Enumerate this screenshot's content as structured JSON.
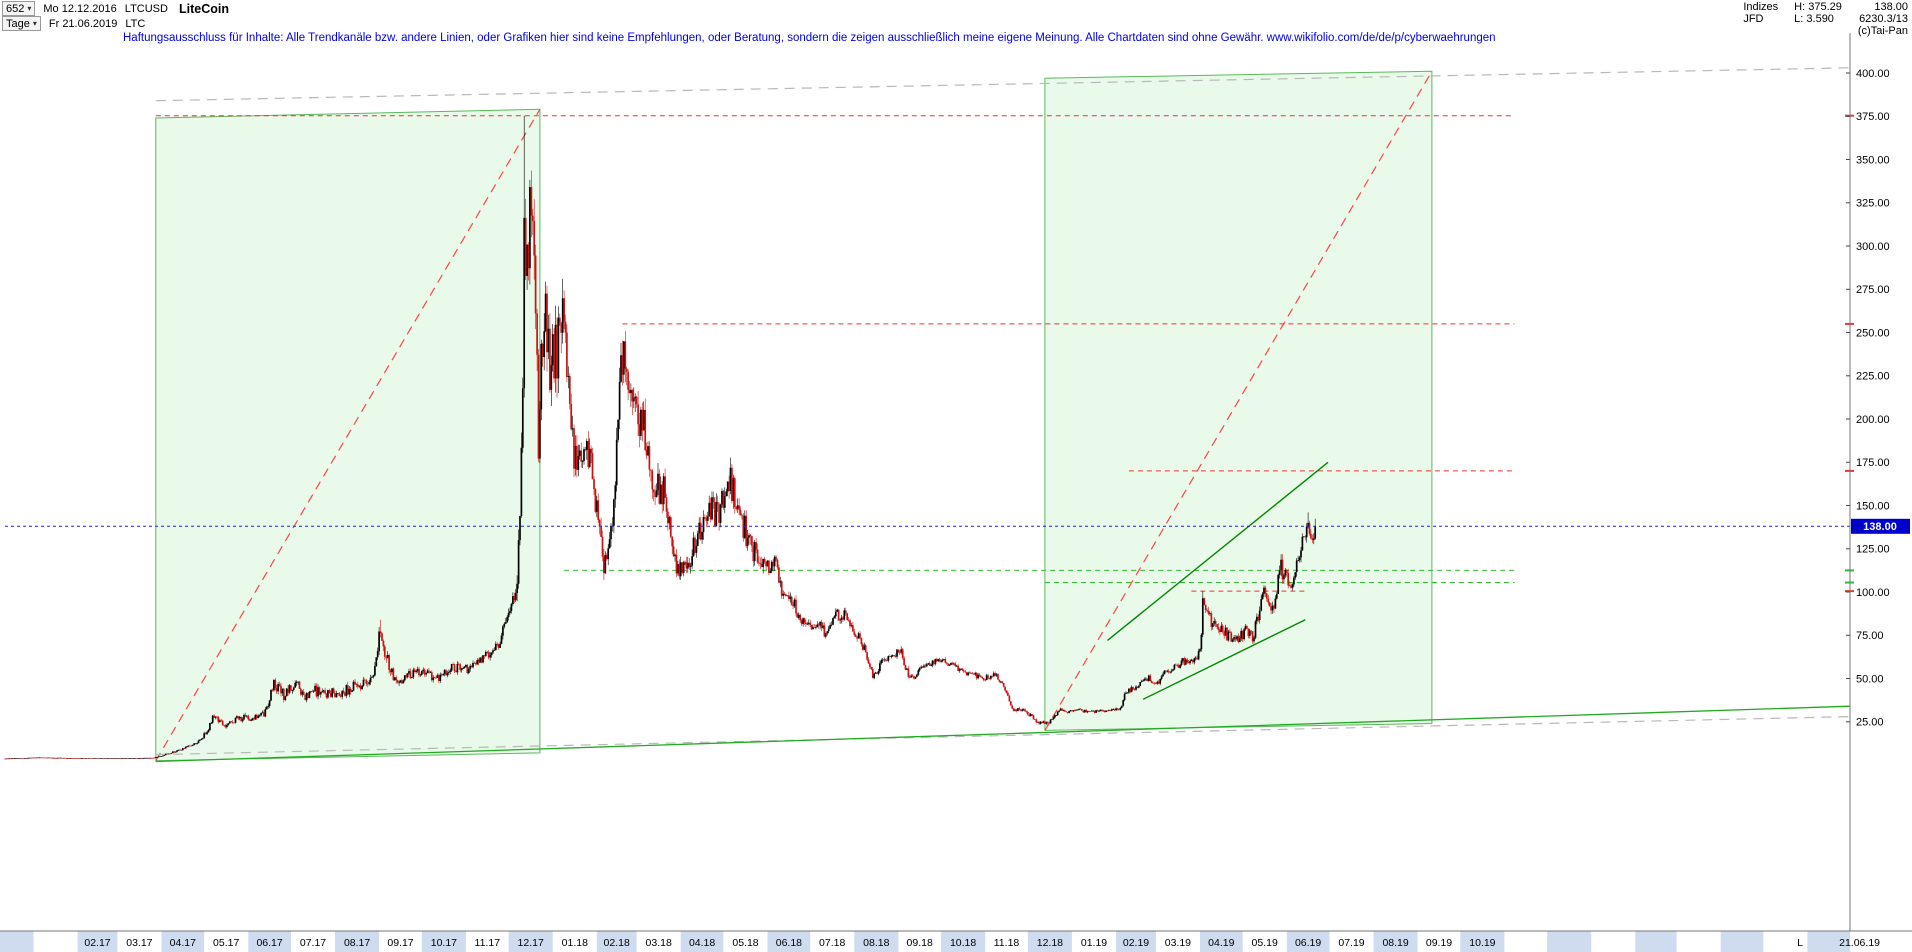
{
  "header": {
    "bars_count": "652",
    "first_date": "Mo 12.12.2016",
    "symbol": "LTCUSD",
    "name": "LiteCoin",
    "period": "Tage",
    "last_date": "Fr 21.06.2019",
    "ticker": "LTC",
    "info": {
      "market": "Indizes",
      "provider": "JFD",
      "high": "H: 375.29",
      "low": "L: 3.590",
      "price": "138.00",
      "index_value": "6230.3/13",
      "copyright": "(c)Tai-Pan"
    },
    "disclaimer": "Haftungsausschluss für Inhalte: Alle Trendkanäle bzw. andere Linien, oder Grafiken hier sind keine Empfehlungen, oder Beratung, sondern die zeigen ausschließlich meine eigene Meinung. Alle Chartdaten sind ohne Gewähr.  www.wikifolio.com/de/de/p/cyberwaehrungen"
  },
  "chart_data": {
    "type": "candlestick",
    "instrument": "LTCUSD",
    "title": "LiteCoin",
    "timeframe": "Tage",
    "range_high": 375.29,
    "range_low": 3.59,
    "last_close": 138.0,
    "x_axis": {
      "start": "2016-12-12",
      "end_of_data": "2019-06-21",
      "plot_end": "2020-07-01",
      "last_bar_marker": "L",
      "last_bar_label": "21.06.19",
      "tick_labels": [
        {
          "label": "02.17",
          "date": "2017-02-01"
        },
        {
          "label": "03.17",
          "date": "2017-03-01"
        },
        {
          "label": "04.17",
          "date": "2017-04-01"
        },
        {
          "label": "05.17",
          "date": "2017-05-01"
        },
        {
          "label": "06.17",
          "date": "2017-06-01"
        },
        {
          "label": "07.17",
          "date": "2017-07-01"
        },
        {
          "label": "08.17",
          "date": "2017-08-01"
        },
        {
          "label": "09.17",
          "date": "2017-09-01"
        },
        {
          "label": "10.17",
          "date": "2017-10-01"
        },
        {
          "label": "11.17",
          "date": "2017-11-01"
        },
        {
          "label": "12.17",
          "date": "2017-12-01"
        },
        {
          "label": "01.18",
          "date": "2018-01-01"
        },
        {
          "label": "02.18",
          "date": "2018-02-01"
        },
        {
          "label": "03.18",
          "date": "2018-03-01"
        },
        {
          "label": "04.18",
          "date": "2018-04-01"
        },
        {
          "label": "05.18",
          "date": "2018-05-01"
        },
        {
          "label": "06.18",
          "date": "2018-06-01"
        },
        {
          "label": "07.18",
          "date": "2018-07-01"
        },
        {
          "label": "08.18",
          "date": "2018-08-01"
        },
        {
          "label": "09.18",
          "date": "2018-09-01"
        },
        {
          "label": "10.18",
          "date": "2018-10-01"
        },
        {
          "label": "11.18",
          "date": "2018-11-01"
        },
        {
          "label": "12.18",
          "date": "2018-12-01"
        },
        {
          "label": "01.19",
          "date": "2019-01-01"
        },
        {
          "label": "02.19",
          "date": "2019-02-01"
        },
        {
          "label": "03.19",
          "date": "2019-03-01"
        },
        {
          "label": "04.19",
          "date": "2019-04-01"
        },
        {
          "label": "05.19",
          "date": "2019-05-01"
        },
        {
          "label": "06.19",
          "date": "2019-06-01"
        },
        {
          "label": "07.19",
          "date": "2019-07-01"
        },
        {
          "label": "08.19",
          "date": "2019-08-01"
        },
        {
          "label": "09.19",
          "date": "2019-09-01"
        },
        {
          "label": "10.19",
          "date": "2019-10-01"
        }
      ]
    },
    "y_axis": {
      "unit": "USD",
      "ticks": [
        25,
        50,
        75,
        100,
        125,
        150,
        175,
        200,
        225,
        250,
        275,
        300,
        325,
        350,
        375,
        400
      ]
    },
    "price_tag": {
      "label": "138.00",
      "price": 138,
      "bg": "#0000cc",
      "fg": "#ffffff"
    },
    "colors": {
      "candle_up": "#000000",
      "candle_down": "#cc1111",
      "month_band": "#cfdcef",
      "axis": "#777777",
      "resistance": "#ee3333",
      "support_green": "#33bb33",
      "trend_green": "#008800",
      "channel_box_fill": "rgba(140,225,140,0.18)",
      "channel_box_edge": "#5cb85c",
      "gray_channel": "#b8b8b8",
      "current_price_line": "#2222dd"
    },
    "series_keyframes": [
      [
        "2016-12-12",
        3.7
      ],
      [
        "2017-01-05",
        4.3
      ],
      [
        "2017-02-01",
        3.9
      ],
      [
        "2017-03-01",
        3.9
      ],
      [
        "2017-03-26",
        4.1
      ],
      [
        "2017-04-08",
        7.2
      ],
      [
        "2017-04-20",
        10.5
      ],
      [
        "2017-04-28",
        14.0
      ],
      [
        "2017-05-08",
        29.0
      ],
      [
        "2017-05-16",
        22.0
      ],
      [
        "2017-05-24",
        27.0
      ],
      [
        "2017-06-02",
        27.0
      ],
      [
        "2017-06-12",
        29.0
      ],
      [
        "2017-06-19",
        48.0
      ],
      [
        "2017-06-26",
        40.0
      ],
      [
        "2017-07-05",
        47.0
      ],
      [
        "2017-07-11",
        38.0
      ],
      [
        "2017-07-17",
        43.0
      ],
      [
        "2017-07-25",
        41.0
      ],
      [
        "2017-08-05",
        42.0
      ],
      [
        "2017-08-14",
        45.0
      ],
      [
        "2017-08-22",
        47.0
      ],
      [
        "2017-08-29",
        55.0
      ],
      [
        "2017-09-01",
        78.0
      ],
      [
        "2017-09-04",
        65.0
      ],
      [
        "2017-09-08",
        58.0
      ],
      [
        "2017-09-14",
        45.0
      ],
      [
        "2017-09-20",
        52.0
      ],
      [
        "2017-09-30",
        54.0
      ],
      [
        "2017-10-12",
        50.0
      ],
      [
        "2017-10-22",
        56.0
      ],
      [
        "2017-11-02",
        55.0
      ],
      [
        "2017-11-12",
        61.0
      ],
      [
        "2017-11-24",
        70.0
      ],
      [
        "2017-12-01",
        88.0
      ],
      [
        "2017-12-06",
        98.0
      ],
      [
        "2017-12-09",
        140.0
      ],
      [
        "2017-12-11",
        230.0
      ],
      [
        "2017-12-12",
        320.0
      ],
      [
        "2017-12-13",
        290.0
      ],
      [
        "2017-12-15",
        300.0
      ],
      [
        "2017-12-18",
        330.0
      ],
      [
        "2017-12-20",
        280.0
      ],
      [
        "2017-12-22",
        190.0
      ],
      [
        "2017-12-26",
        270.0
      ],
      [
        "2017-12-30",
        225.0
      ],
      [
        "2018-01-04",
        240.0
      ],
      [
        "2018-01-08",
        255.0
      ],
      [
        "2018-01-12",
        230.0
      ],
      [
        "2018-01-16",
        175.0
      ],
      [
        "2018-01-22",
        180.0
      ],
      [
        "2018-01-28",
        177.0
      ],
      [
        "2018-02-02",
        140.0
      ],
      [
        "2018-02-06",
        115.0
      ],
      [
        "2018-02-12",
        145.0
      ],
      [
        "2018-02-17",
        220.0
      ],
      [
        "2018-02-20",
        242.0
      ],
      [
        "2018-02-26",
        210.0
      ],
      [
        "2018-03-06",
        195.0
      ],
      [
        "2018-03-14",
        160.0
      ],
      [
        "2018-03-20",
        158.0
      ],
      [
        "2018-03-26",
        128.0
      ],
      [
        "2018-03-30",
        112.0
      ],
      [
        "2018-04-06",
        118.0
      ],
      [
        "2018-04-13",
        130.0
      ],
      [
        "2018-04-20",
        148.0
      ],
      [
        "2018-04-25",
        145.0
      ],
      [
        "2018-05-02",
        152.0
      ],
      [
        "2018-05-06",
        165.0
      ],
      [
        "2018-05-11",
        148.0
      ],
      [
        "2018-05-18",
        132.0
      ],
      [
        "2018-05-24",
        120.0
      ],
      [
        "2018-05-30",
        112.0
      ],
      [
        "2018-06-06",
        118.0
      ],
      [
        "2018-06-11",
        100.0
      ],
      [
        "2018-06-18",
        96.0
      ],
      [
        "2018-06-24",
        85.0
      ],
      [
        "2018-06-30",
        80.0
      ],
      [
        "2018-07-06",
        82.0
      ],
      [
        "2018-07-12",
        76.0
      ],
      [
        "2018-07-18",
        86.0
      ],
      [
        "2018-07-24",
        87.0
      ],
      [
        "2018-07-31",
        78.0
      ],
      [
        "2018-08-06",
        72.0
      ],
      [
        "2018-08-11",
        60.0
      ],
      [
        "2018-08-14",
        52.0
      ],
      [
        "2018-08-20",
        58.0
      ],
      [
        "2018-08-28",
        64.0
      ],
      [
        "2018-09-03",
        66.0
      ],
      [
        "2018-09-06",
        54.0
      ],
      [
        "2018-09-12",
        51.0
      ],
      [
        "2018-09-18",
        56.0
      ],
      [
        "2018-09-24",
        58.0
      ],
      [
        "2018-09-30",
        61.0
      ],
      [
        "2018-10-08",
        58.0
      ],
      [
        "2018-10-15",
        54.0
      ],
      [
        "2018-10-24",
        52.0
      ],
      [
        "2018-11-01",
        50.0
      ],
      [
        "2018-11-08",
        53.0
      ],
      [
        "2018-11-14",
        45.0
      ],
      [
        "2018-11-20",
        33.0
      ],
      [
        "2018-11-26",
        32.0
      ],
      [
        "2018-12-03",
        29.0
      ],
      [
        "2018-12-07",
        25.0
      ],
      [
        "2018-12-15",
        23.5
      ],
      [
        "2018-12-20",
        29.0
      ],
      [
        "2018-12-24",
        33.0
      ],
      [
        "2018-12-28",
        30.0
      ],
      [
        "2019-01-04",
        32.0
      ],
      [
        "2019-01-10",
        31.0
      ],
      [
        "2019-01-16",
        30.5
      ],
      [
        "2019-01-22",
        31.5
      ],
      [
        "2019-01-28",
        31.0
      ],
      [
        "2019-02-04",
        33.0
      ],
      [
        "2019-02-08",
        43.0
      ],
      [
        "2019-02-14",
        44.0
      ],
      [
        "2019-02-19",
        47.0
      ],
      [
        "2019-02-24",
        50.0
      ],
      [
        "2019-03-02",
        47.0
      ],
      [
        "2019-03-08",
        55.0
      ],
      [
        "2019-03-14",
        56.0
      ],
      [
        "2019-03-20",
        60.0
      ],
      [
        "2019-03-27",
        59.0
      ],
      [
        "2019-04-01",
        66.0
      ],
      [
        "2019-04-03",
        94.0
      ],
      [
        "2019-04-06",
        89.0
      ],
      [
        "2019-04-10",
        81.0
      ],
      [
        "2019-04-16",
        78.0
      ],
      [
        "2019-04-22",
        74.0
      ],
      [
        "2019-04-27",
        72.0
      ],
      [
        "2019-05-03",
        78.0
      ],
      [
        "2019-05-08",
        74.0
      ],
      [
        "2019-05-13",
        89.0
      ],
      [
        "2019-05-16",
        103.0
      ],
      [
        "2019-05-19",
        91.0
      ],
      [
        "2019-05-23",
        94.0
      ],
      [
        "2019-05-28",
        114.0
      ],
      [
        "2019-05-31",
        109.0
      ],
      [
        "2019-06-04",
        102.0
      ],
      [
        "2019-06-09",
        117.0
      ],
      [
        "2019-06-12",
        133.0
      ],
      [
        "2019-06-16",
        136.0
      ],
      [
        "2019-06-19",
        134.0
      ],
      [
        "2019-06-21",
        138.0
      ]
    ],
    "volatility_eras": [
      [
        "2016-12-12",
        0.013
      ],
      [
        "2017-04-01",
        0.05
      ],
      [
        "2017-09-16",
        0.035
      ],
      [
        "2017-12-07",
        0.055
      ],
      [
        "2018-01-10",
        0.042
      ],
      [
        "2018-06-01",
        0.03
      ],
      [
        "2018-09-10",
        0.022
      ],
      [
        "2018-11-16",
        0.032
      ],
      [
        "2018-12-22",
        0.02
      ],
      [
        "2019-02-06",
        0.025
      ],
      [
        "2019-04-02",
        0.032
      ],
      [
        "2019-06-01",
        0.028
      ]
    ],
    "pins": {
      "2016-12-17": {
        "low": 3.59
      },
      "2017-09-02": {
        "high": 84.0
      },
      "2017-12-12": {
        "high": 375.29
      },
      "2018-12-15": {
        "low": 22.6
      },
      "2019-04-03": {
        "high": 100.5
      },
      "2019-06-16": {
        "high": 146.0
      },
      "2019-06-21": {
        "close": 138.0,
        "high": 141.5
      }
    },
    "overlays": [
      {
        "id": "channel-box-2017",
        "type": "polygon",
        "color": "#5cb85c",
        "fill": "rgba(140,225,140,0.18)",
        "width": 1,
        "points": [
          [
            "2017-03-28",
            374
          ],
          [
            "2017-12-23",
            379
          ],
          [
            "2017-12-23",
            7
          ],
          [
            "2017-03-28",
            2.5
          ]
        ]
      },
      {
        "id": "channel-box-2019",
        "type": "polygon",
        "color": "#5cb85c",
        "fill": "rgba(140,225,140,0.18)",
        "width": 1,
        "points": [
          [
            "2018-12-13",
            397
          ],
          [
            "2019-09-11",
            401
          ],
          [
            "2019-09-11",
            24
          ],
          [
            "2018-12-13",
            20
          ]
        ]
      },
      {
        "id": "red-channel-diagonal-2017",
        "type": "line",
        "color": "#ff4444",
        "dash": "9 6",
        "width": 1.2,
        "points": [
          [
            "2017-03-28",
            2.5
          ],
          [
            "2017-12-23",
            379
          ]
        ]
      },
      {
        "id": "red-channel-diagonal-2019",
        "type": "line",
        "color": "#ff4444",
        "dash": "9 6",
        "width": 1.2,
        "points": [
          [
            "2018-12-13",
            20
          ],
          [
            "2019-09-11",
            401
          ]
        ]
      },
      {
        "id": "resistance-375",
        "type": "line",
        "color": "#ee3333",
        "dash": "5 4",
        "width": 1,
        "axis_tick": true,
        "points": [
          [
            "2017-03-28",
            375.3
          ],
          [
            "2019-11-08",
            375.3
          ]
        ]
      },
      {
        "id": "resistance-255",
        "type": "line",
        "color": "#ee3333",
        "dash": "5 4",
        "width": 1,
        "axis_tick": true,
        "points": [
          [
            "2018-02-19",
            255
          ],
          [
            "2019-11-08",
            255
          ]
        ]
      },
      {
        "id": "resistance-170",
        "type": "line",
        "color": "#ee3333",
        "dash": "5 4",
        "width": 1,
        "axis_tick": true,
        "points": [
          [
            "2019-02-10",
            170
          ],
          [
            "2019-11-08",
            170
          ]
        ]
      },
      {
        "id": "resistance-100",
        "type": "line",
        "color": "#ee3333",
        "dash": "5 4",
        "width": 1,
        "axis_tick": true,
        "points": [
          [
            "2019-03-26",
            100.5
          ],
          [
            "2019-06-15",
            100.5
          ]
        ]
      },
      {
        "id": "support-green-113",
        "type": "line",
        "color": "#33bb33",
        "dash": "5 4",
        "width": 1,
        "axis_tick": true,
        "points": [
          [
            "2018-01-09",
            112.5
          ],
          [
            "2019-11-08",
            112.5
          ]
        ]
      },
      {
        "id": "support-green-106",
        "type": "line",
        "color": "#33bb33",
        "dash": "5 4",
        "width": 1,
        "axis_tick": true,
        "points": [
          [
            "2018-12-13",
            105.5
          ],
          [
            "2019-11-08",
            105.5
          ]
        ]
      },
      {
        "id": "gray-channel-top",
        "type": "line",
        "color": "#b8b8b8",
        "dash": "10 7",
        "width": 1.2,
        "points": [
          [
            "2017-03-28",
            384
          ],
          [
            "2020-07-01",
            403
          ]
        ]
      },
      {
        "id": "gray-channel-bottom",
        "type": "line",
        "color": "#b8b8b8",
        "dash": "10 7",
        "width": 1.2,
        "points": [
          [
            "2017-03-28",
            6
          ],
          [
            "2020-07-01",
            28
          ]
        ]
      },
      {
        "id": "long-term-support",
        "type": "line",
        "color": "#22aa22",
        "width": 1.3,
        "points": [
          [
            "2017-03-28",
            2.0
          ],
          [
            "2020-07-01",
            34
          ]
        ]
      },
      {
        "id": "trend-channel-upper-2019",
        "type": "line",
        "color": "#008800",
        "width": 1.4,
        "points": [
          [
            "2019-01-26",
            72
          ],
          [
            "2019-06-30",
            175
          ]
        ]
      },
      {
        "id": "trend-channel-lower-2019",
        "type": "line",
        "color": "#008800",
        "width": 1.4,
        "points": [
          [
            "2019-02-20",
            38
          ],
          [
            "2019-06-14",
            84
          ]
        ]
      },
      {
        "id": "current-price-line",
        "type": "line",
        "color": "#2222dd",
        "dash": "3 3",
        "width": 1,
        "layer": "top",
        "points": [
          [
            "2016-12-12",
            138
          ],
          [
            "2020-07-01",
            138
          ]
        ]
      }
    ]
  }
}
